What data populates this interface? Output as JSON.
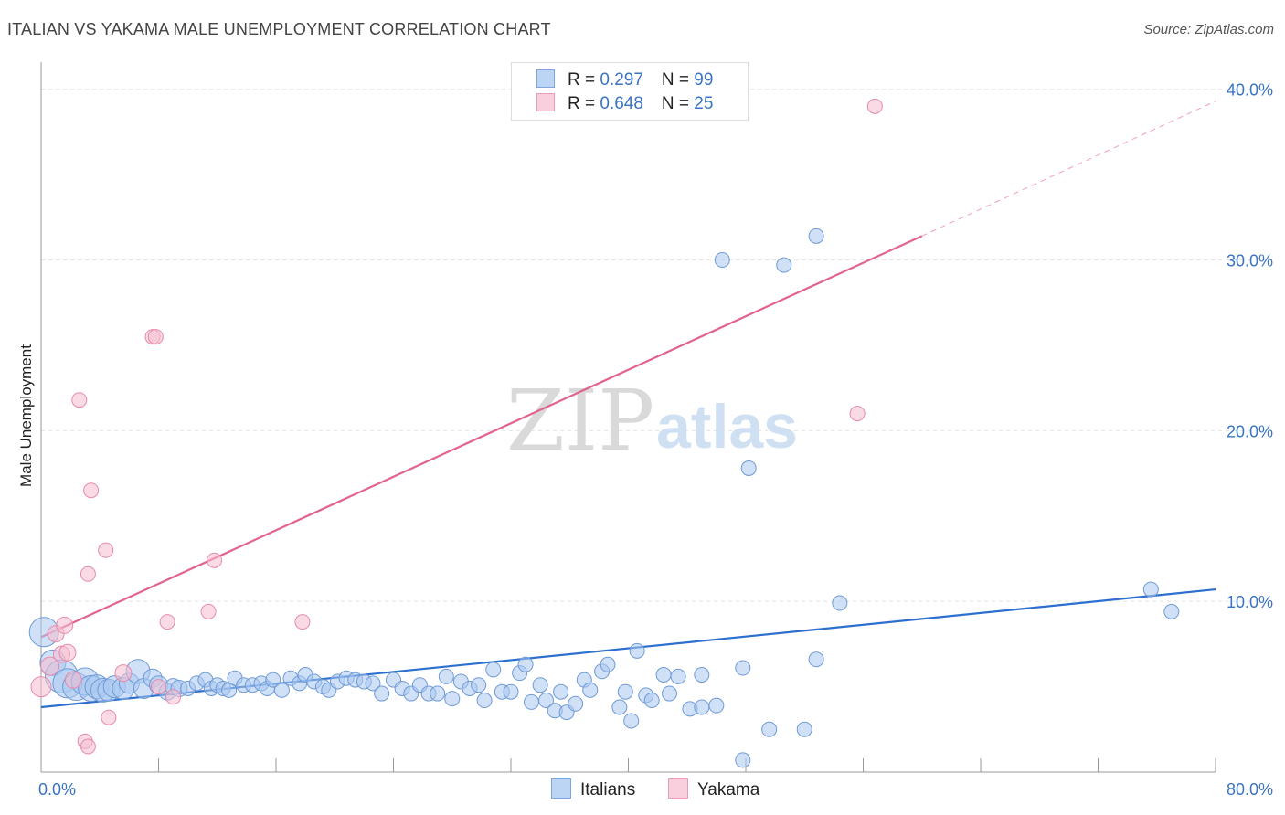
{
  "title": "ITALIAN VS YAKAMA MALE UNEMPLOYMENT CORRELATION CHART",
  "source": "Source: ZipAtlas.com",
  "watermark": {
    "zip": "ZIP",
    "atlas": "atlas"
  },
  "legend": [
    {
      "name": "Italians",
      "r_label": "R = ",
      "r_value": "0.297",
      "n_label": "N = ",
      "n_value": "99",
      "fill": "#a9c8f0",
      "stroke": "#6f9ad6"
    },
    {
      "name": "Yakama",
      "r_label": "R = ",
      "r_value": "0.648",
      "n_label": "N = ",
      "n_value": "25",
      "fill": "#f6bdd0",
      "stroke": "#e88aaa"
    }
  ],
  "chart_data": {
    "type": "scatter",
    "title": "ITALIAN VS YAKAMA MALE UNEMPLOYMENT CORRELATION CHART",
    "xlabel": "",
    "ylabel": "Male Unemployment",
    "xlim": [
      0,
      80
    ],
    "ylim": [
      0,
      41
    ],
    "x_tick_labels": [
      {
        "value": 0,
        "label": "0.0%"
      },
      {
        "value": 80,
        "label": "80.0%"
      }
    ],
    "y_tick_labels": [
      {
        "value": 10,
        "label": "10.0%"
      },
      {
        "value": 20,
        "label": "20.0%"
      },
      {
        "value": 30,
        "label": "30.0%"
      },
      {
        "value": 40,
        "label": "40.0%"
      }
    ],
    "x_minor_ticks": [
      8,
      16,
      24,
      32,
      40,
      48,
      56,
      64,
      72
    ],
    "grid": true,
    "series": [
      {
        "name": "Italians",
        "color": "#6f9ad6",
        "fill": "#a9c8f0",
        "trendline": {
          "x": [
            0,
            80
          ],
          "y": [
            3.8,
            10.7
          ],
          "color": "#2d6fce"
        },
        "points": [
          [
            0.2,
            8.2,
            16
          ],
          [
            0.8,
            6.4,
            14
          ],
          [
            1.4,
            5.6,
            18
          ],
          [
            1.8,
            5.2,
            16
          ],
          [
            2.4,
            5.0,
            15
          ],
          [
            3.0,
            5.3,
            15
          ],
          [
            3.4,
            4.9,
            14
          ],
          [
            3.8,
            5.0,
            13
          ],
          [
            4.2,
            4.8,
            13
          ],
          [
            4.6,
            4.8,
            12
          ],
          [
            5.0,
            5.0,
            12
          ],
          [
            5.6,
            4.9,
            12
          ],
          [
            6.0,
            5.2,
            11
          ],
          [
            6.6,
            5.9,
            13
          ],
          [
            7.0,
            4.9,
            11
          ],
          [
            7.6,
            5.5,
            10
          ],
          [
            8.0,
            5.1,
            10
          ],
          [
            8.6,
            4.7,
            9
          ],
          [
            9.0,
            5.0,
            9
          ],
          [
            9.4,
            4.9,
            9
          ],
          [
            10.0,
            4.9,
            8
          ],
          [
            10.6,
            5.2,
            8
          ],
          [
            11.2,
            5.4,
            8
          ],
          [
            11.6,
            4.9,
            8
          ],
          [
            12.0,
            5.1,
            8
          ],
          [
            12.4,
            4.9,
            8
          ],
          [
            12.8,
            4.8,
            8
          ],
          [
            13.2,
            5.5,
            8
          ],
          [
            13.8,
            5.1,
            8
          ],
          [
            14.4,
            5.1,
            8
          ],
          [
            15.0,
            5.2,
            8
          ],
          [
            15.4,
            4.9,
            8
          ],
          [
            15.8,
            5.4,
            8
          ],
          [
            16.4,
            4.8,
            8
          ],
          [
            17.0,
            5.5,
            8
          ],
          [
            17.6,
            5.2,
            8
          ],
          [
            18.0,
            5.7,
            8
          ],
          [
            18.6,
            5.3,
            8
          ],
          [
            19.2,
            5.0,
            8
          ],
          [
            19.6,
            4.8,
            8
          ],
          [
            20.2,
            5.3,
            8
          ],
          [
            20.8,
            5.5,
            8
          ],
          [
            21.4,
            5.4,
            8
          ],
          [
            22.0,
            5.3,
            8
          ],
          [
            22.6,
            5.2,
            8
          ],
          [
            23.2,
            4.6,
            8
          ],
          [
            24.0,
            5.4,
            8
          ],
          [
            24.6,
            4.9,
            8
          ],
          [
            25.2,
            4.6,
            8
          ],
          [
            25.8,
            5.1,
            8
          ],
          [
            26.4,
            4.6,
            8
          ],
          [
            27.0,
            4.6,
            8
          ],
          [
            27.6,
            5.6,
            8
          ],
          [
            28.0,
            4.3,
            8
          ],
          [
            28.6,
            5.3,
            8
          ],
          [
            29.2,
            4.9,
            8
          ],
          [
            29.8,
            5.1,
            8
          ],
          [
            30.2,
            4.2,
            8
          ],
          [
            30.8,
            6.0,
            8
          ],
          [
            31.4,
            4.7,
            8
          ],
          [
            32.0,
            4.7,
            8
          ],
          [
            32.6,
            5.8,
            8
          ],
          [
            33.0,
            6.3,
            8
          ],
          [
            33.4,
            4.1,
            8
          ],
          [
            34.0,
            5.1,
            8
          ],
          [
            34.4,
            4.2,
            8
          ],
          [
            35.0,
            3.6,
            8
          ],
          [
            35.4,
            4.7,
            8
          ],
          [
            35.8,
            3.5,
            8
          ],
          [
            36.4,
            4.0,
            8
          ],
          [
            37.0,
            5.4,
            8
          ],
          [
            37.4,
            4.8,
            8
          ],
          [
            38.2,
            5.9,
            8
          ],
          [
            38.6,
            6.3,
            8
          ],
          [
            39.4,
            3.8,
            8
          ],
          [
            39.8,
            4.7,
            8
          ],
          [
            40.2,
            3.0,
            8
          ],
          [
            40.6,
            7.1,
            8
          ],
          [
            41.2,
            4.5,
            8
          ],
          [
            41.6,
            4.2,
            8
          ],
          [
            42.4,
            5.7,
            8
          ],
          [
            42.8,
            4.6,
            8
          ],
          [
            43.4,
            5.6,
            8
          ],
          [
            44.2,
            3.7,
            8
          ],
          [
            45.0,
            3.8,
            8
          ],
          [
            45.0,
            5.7,
            8
          ],
          [
            46.0,
            3.9,
            8
          ],
          [
            46.4,
            30.0,
            8
          ],
          [
            47.8,
            0.7,
            8
          ],
          [
            47.8,
            6.1,
            8
          ],
          [
            48.2,
            17.8,
            8
          ],
          [
            49.6,
            2.5,
            8
          ],
          [
            50.6,
            29.7,
            8
          ],
          [
            52.0,
            2.5,
            8
          ],
          [
            52.8,
            31.4,
            8
          ],
          [
            52.8,
            6.6,
            8
          ],
          [
            54.4,
            9.9,
            8
          ],
          [
            75.6,
            10.7,
            8
          ],
          [
            77.0,
            9.4,
            8
          ]
        ]
      },
      {
        "name": "Yakama",
        "color": "#e88aaa",
        "fill": "#f6bdd0",
        "trendline": {
          "x": [
            0,
            60
          ],
          "y": [
            7.9,
            31.4
          ],
          "dashed_to": [
            80,
            39.3
          ],
          "color": "#e2638e"
        },
        "points": [
          [
            0.0,
            5.0,
            11
          ],
          [
            0.6,
            6.2,
            10
          ],
          [
            1.0,
            8.1,
            9
          ],
          [
            1.4,
            6.9,
            9
          ],
          [
            1.6,
            8.6,
            9
          ],
          [
            1.8,
            7.0,
            9
          ],
          [
            2.2,
            5.4,
            9
          ],
          [
            2.6,
            21.8,
            8
          ],
          [
            3.0,
            1.8,
            8
          ],
          [
            3.2,
            1.5,
            8
          ],
          [
            3.2,
            11.6,
            8
          ],
          [
            3.4,
            16.5,
            8
          ],
          [
            4.4,
            13.0,
            8
          ],
          [
            4.6,
            3.2,
            8
          ],
          [
            5.6,
            5.8,
            9
          ],
          [
            7.6,
            25.5,
            8
          ],
          [
            7.8,
            25.5,
            8
          ],
          [
            8.0,
            5.0,
            8
          ],
          [
            8.6,
            8.8,
            8
          ],
          [
            9.0,
            4.4,
            8
          ],
          [
            11.4,
            9.4,
            8
          ],
          [
            11.8,
            12.4,
            8
          ],
          [
            17.8,
            8.8,
            8
          ],
          [
            55.6,
            21.0,
            8
          ],
          [
            56.8,
            39.0,
            8
          ]
        ]
      }
    ]
  }
}
